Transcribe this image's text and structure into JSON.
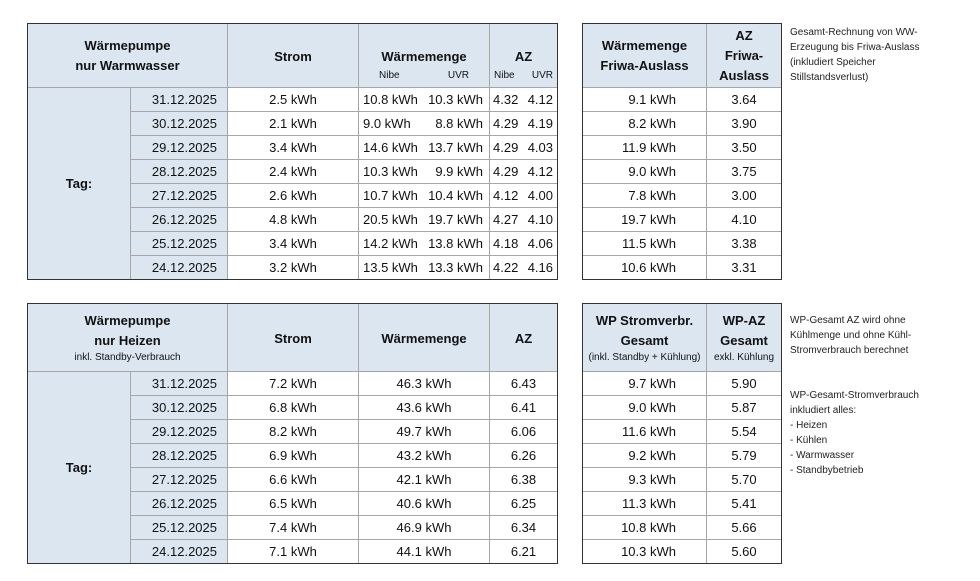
{
  "top": {
    "header": {
      "title": [
        "Wärmepumpe",
        "nur Warmwasser"
      ],
      "strom": "Strom",
      "waermemenge": "Wärmemenge",
      "az": "AZ",
      "sub": [
        "Nibe",
        "UVR",
        "Nibe",
        "UVR"
      ]
    },
    "row_label": "Tag:",
    "rows": [
      [
        "31.12.2025",
        "2.5 kWh",
        "10.8 kWh",
        "10.3 kWh",
        "4.32",
        "4.12"
      ],
      [
        "30.12.2025",
        "2.1 kWh",
        "9.0 kWh",
        "8.8 kWh",
        "4.29",
        "4.19"
      ],
      [
        "29.12.2025",
        "3.4 kWh",
        "14.6 kWh",
        "13.7 kWh",
        "4.29",
        "4.03"
      ],
      [
        "28.12.2025",
        "2.4 kWh",
        "10.3 kWh",
        "9.9 kWh",
        "4.29",
        "4.12"
      ],
      [
        "27.12.2025",
        "2.6 kWh",
        "10.7 kWh",
        "10.4 kWh",
        "4.12",
        "4.00"
      ],
      [
        "26.12.2025",
        "4.8 kWh",
        "20.5 kWh",
        "19.7 kWh",
        "4.27",
        "4.10"
      ],
      [
        "25.12.2025",
        "3.4 kWh",
        "14.2 kWh",
        "13.8 kWh",
        "4.18",
        "4.06"
      ],
      [
        "24.12.2025",
        "3.2 kWh",
        "13.5 kWh",
        "13.3 kWh",
        "4.22",
        "4.16"
      ]
    ],
    "side_header": {
      "col1": [
        "Wärmemenge",
        "Friwa-Auslass"
      ],
      "col2": [
        "AZ",
        "Friwa-",
        "Auslass"
      ]
    },
    "side_rows": [
      [
        "9.1 kWh",
        "3.64"
      ],
      [
        "8.2 kWh",
        "3.90"
      ],
      [
        "11.9 kWh",
        "3.50"
      ],
      [
        "9.0 kWh",
        "3.75"
      ],
      [
        "7.8 kWh",
        "3.00"
      ],
      [
        "19.7 kWh",
        "4.10"
      ],
      [
        "11.5 kWh",
        "3.38"
      ],
      [
        "10.6 kWh",
        "3.31"
      ]
    ]
  },
  "bottom": {
    "header": {
      "title": [
        "Wärmepumpe",
        "nur Heizen"
      ],
      "subtitle": "inkl. Standby-Verbrauch",
      "strom": "Strom",
      "waermemenge": "Wärmemenge",
      "az": "AZ"
    },
    "row_label": "Tag:",
    "rows": [
      [
        "31.12.2025",
        "7.2 kWh",
        "46.3 kWh",
        "6.43"
      ],
      [
        "30.12.2025",
        "6.8 kWh",
        "43.6 kWh",
        "6.41"
      ],
      [
        "29.12.2025",
        "8.2 kWh",
        "49.7 kWh",
        "6.06"
      ],
      [
        "28.12.2025",
        "6.9 kWh",
        "43.2 kWh",
        "6.26"
      ],
      [
        "27.12.2025",
        "6.6 kWh",
        "42.1 kWh",
        "6.38"
      ],
      [
        "26.12.2025",
        "6.5 kWh",
        "40.6 kWh",
        "6.25"
      ],
      [
        "25.12.2025",
        "7.4 kWh",
        "46.9 kWh",
        "6.34"
      ],
      [
        "24.12.2025",
        "7.1 kWh",
        "44.1 kWh",
        "6.21"
      ]
    ],
    "side_header": {
      "col1": [
        "WP Stromverbr.",
        "Gesamt"
      ],
      "col1_sub": "(inkl. Standby + Kühlung)",
      "col2": [
        "WP-AZ",
        "Gesamt"
      ],
      "col2_sub": "exkl. Kühlung"
    },
    "side_rows": [
      [
        "9.7 kWh",
        "5.90"
      ],
      [
        "9.0 kWh",
        "5.87"
      ],
      [
        "11.6 kWh",
        "5.54"
      ],
      [
        "9.2 kWh",
        "5.79"
      ],
      [
        "9.3 kWh",
        "5.70"
      ],
      [
        "11.3 kWh",
        "5.41"
      ],
      [
        "10.8 kWh",
        "5.66"
      ],
      [
        "10.3 kWh",
        "5.60"
      ]
    ]
  },
  "notes": [
    [
      "Gesamt-Rechnung von WW-",
      "Erzeugung  bis Friwa-Auslass",
      "(inkludiert Speicher",
      "Stillstandsverlust)"
    ],
    [
      "WP-Gesamt AZ wird ohne",
      "Kühlmenge und ohne Kühl-",
      "Stromverbrauch berechnet"
    ],
    [
      "WP-Gesamt-Stromverbrauch",
      "inkludiert alles:",
      "- Heizen",
      "- Kühlen",
      "- Warmwasser",
      "- Standbybetrieb"
    ]
  ]
}
